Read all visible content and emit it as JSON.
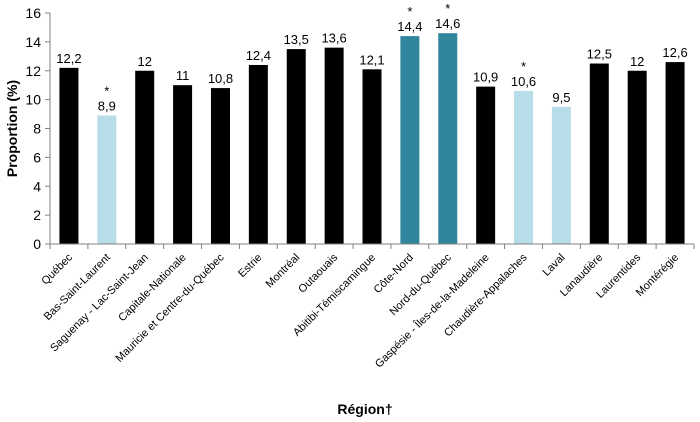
{
  "chart_data": {
    "type": "bar",
    "title": "",
    "xlabel": "Région†",
    "ylabel": "Proportion (%)",
    "ylim": [
      0,
      16
    ],
    "yticks": [
      0,
      2,
      4,
      6,
      8,
      10,
      12,
      14,
      16
    ],
    "grid": false,
    "legend": "none",
    "categories": [
      "Québec",
      "Bas-Saint-Laurent",
      "Saguenay - Lac-Saint-Jean",
      "Capitale-Nationale",
      "Mauricie et Centre-du-Québec",
      "Estrie",
      "Montréal",
      "Outaouais",
      "Abitibi-Témiscamingue",
      "Côte-Nord",
      "Nord-du-Québec",
      "Gaspésie - Îles-de-la-Madeleine",
      "Chaudière-Appalaches",
      "Laval",
      "Lanaudière",
      "Laurentides",
      "Montérégie"
    ],
    "values": [
      12.2,
      8.9,
      12,
      11,
      10.8,
      12.4,
      13.5,
      13.6,
      12.1,
      14.4,
      14.6,
      10.9,
      10.6,
      9.5,
      12.5,
      12,
      12.6
    ],
    "value_labels": [
      "12,2",
      "8,9",
      "12",
      "11",
      "10,8",
      "12,4",
      "13,5",
      "13,6",
      "12,1",
      "14,4",
      "14,6",
      "10,9",
      "10,6",
      "9,5",
      "12,5",
      "12",
      "12,6"
    ],
    "markers": [
      "",
      "*",
      "",
      "",
      "",
      "",
      "",
      "",
      "",
      "*",
      "*",
      "",
      "*",
      "",
      "",
      "",
      ""
    ],
    "colors": [
      "#000000",
      "#b7dde8",
      "#000000",
      "#000000",
      "#000000",
      "#000000",
      "#000000",
      "#000000",
      "#000000",
      "#31859c",
      "#31859c",
      "#000000",
      "#b7dde8",
      "#b7dde8",
      "#000000",
      "#000000",
      "#000000"
    ],
    "axis_color": "#808080"
  }
}
